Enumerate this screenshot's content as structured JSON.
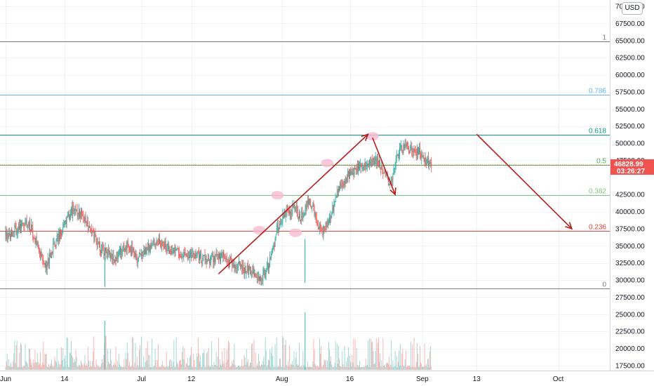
{
  "chart_data": {
    "type": "candlestick",
    "currency": "USD",
    "price_axis": {
      "ylim": [
        16500,
        70700
      ],
      "ticks": [
        {
          "value": 70000,
          "label": "70000.00"
        },
        {
          "value": 67500,
          "label": "67500.00"
        },
        {
          "value": 65000,
          "label": "65000.00"
        },
        {
          "value": 62500,
          "label": "62500.00"
        },
        {
          "value": 60000,
          "label": "60000.00"
        },
        {
          "value": 57500,
          "label": "57500.00"
        },
        {
          "value": 55000,
          "label": "55000.00"
        },
        {
          "value": 52500,
          "label": "52500.00"
        },
        {
          "value": 50000,
          "label": "50000.00"
        },
        {
          "value": 47500,
          "label": "47500.00"
        },
        {
          "value": 42500,
          "label": "42500.00"
        },
        {
          "value": 40000,
          "label": "40000.00"
        },
        {
          "value": 37500,
          "label": "37500.00"
        },
        {
          "value": 35000,
          "label": "35000.00"
        },
        {
          "value": 32500,
          "label": "32500.00"
        },
        {
          "value": 30000,
          "label": "30000.00"
        },
        {
          "value": 27500,
          "label": "27500.00"
        },
        {
          "value": 25000,
          "label": "25000.00"
        },
        {
          "value": 22500,
          "label": "22500.00"
        },
        {
          "value": 20000,
          "label": "20000.00"
        },
        {
          "value": 17500,
          "label": "17500.00"
        }
      ]
    },
    "time_axis": {
      "ticks": [
        {
          "label": "Jun",
          "date": "2021-06-01"
        },
        {
          "label": "14",
          "date": "2021-06-14"
        },
        {
          "label": "Jul",
          "date": "2021-07-01"
        },
        {
          "label": "12",
          "date": "2021-07-12"
        },
        {
          "label": "Aug",
          "date": "2021-08-01"
        },
        {
          "label": "16",
          "date": "2021-08-16"
        },
        {
          "label": "Sep",
          "date": "2021-09-01"
        },
        {
          "label": "13",
          "date": "2021-09-13"
        },
        {
          "label": "Oct",
          "date": "2021-10-01"
        }
      ]
    },
    "current_price": {
      "value": 46828.99,
      "label": "46828.99",
      "countdown": "03:26:27",
      "color": "#ef5350"
    },
    "fib_levels": [
      {
        "label": "1",
        "price": 64900,
        "color": "#787b86"
      },
      {
        "label": "0.786",
        "price": 57100,
        "color": "#64b5f6"
      },
      {
        "label": "0.618",
        "price": 51200,
        "color": "#089981"
      },
      {
        "label": "0.5",
        "price": 46800,
        "color": "#4caf50"
      },
      {
        "label": "0.382",
        "price": 42400,
        "color": "#81c784"
      },
      {
        "label": "0.236",
        "price": 37200,
        "color": "#f44336"
      },
      {
        "label": "0",
        "price": 28800,
        "color": "#787b86"
      }
    ],
    "arrows": [
      {
        "from": {
          "date": "2021-07-18",
          "price": 30900
        },
        "to": {
          "date": "2021-08-20",
          "price": 51300
        },
        "color": "#b71c1c"
      },
      {
        "from": {
          "date": "2021-08-21",
          "price": 50800
        },
        "to": {
          "date": "2021-08-26",
          "price": 42500
        },
        "color": "#b71c1c"
      },
      {
        "from": {
          "date": "2021-09-13",
          "price": 51300
        },
        "to": {
          "date": "2021-10-04",
          "price": 37500
        },
        "color": "#b71c1c"
      }
    ],
    "highlights": [
      {
        "date": "2021-08-21",
        "price": 51000
      },
      {
        "date": "2021-08-11",
        "price": 47100
      },
      {
        "date": "2021-07-31",
        "price": 42400
      },
      {
        "date": "2021-08-04",
        "price": 36900
      },
      {
        "date": "2021-07-27",
        "price": 37300
      }
    ],
    "up_color": "#26a69a",
    "down_color": "#ef5350"
  }
}
